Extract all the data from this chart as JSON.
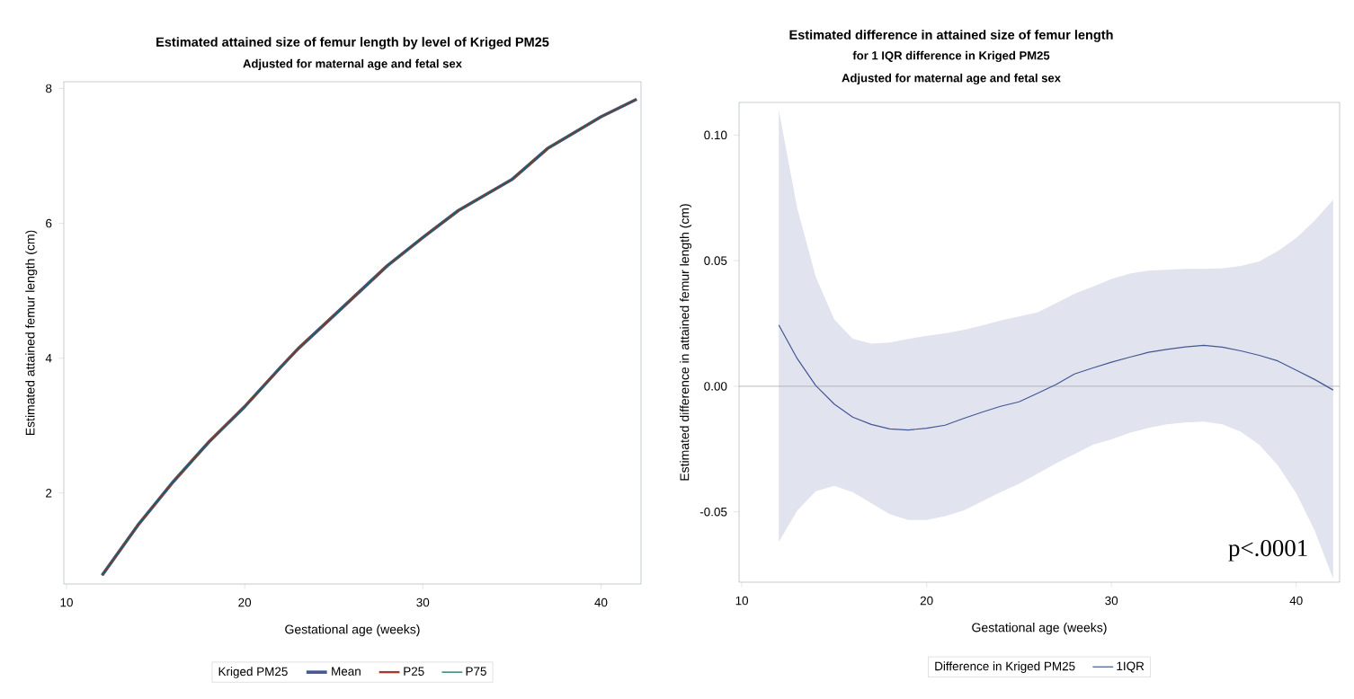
{
  "chart_data": [
    {
      "type": "line",
      "title": "Estimated attained size of femur length by level of Kriged PM25",
      "subtitle": "Adjusted for maternal age and fetal sex",
      "xlabel": "Gestational age (weeks)",
      "ylabel": "Estimated attained femur length (cm)",
      "legend_title": "Kriged PM25",
      "legend": "bottom",
      "x": [
        12,
        14,
        16,
        18,
        20,
        22,
        23,
        25,
        28,
        30,
        32,
        35,
        37,
        40,
        42
      ],
      "xlim": [
        9.85,
        42.25
      ],
      "xticks": [
        10,
        20,
        30,
        40
      ],
      "ylim": [
        0.65,
        8.1
      ],
      "yticks": [
        2,
        4,
        6,
        8
      ],
      "series": [
        {
          "name": "Mean",
          "color": "#445694",
          "values": [
            0.78,
            1.52,
            2.17,
            2.76,
            3.28,
            3.86,
            4.14,
            4.63,
            5.37,
            5.79,
            6.19,
            6.65,
            7.11,
            7.58,
            7.84
          ]
        },
        {
          "name": "P25",
          "color": "#a23a2e",
          "values": [
            0.78,
            1.52,
            2.17,
            2.76,
            3.28,
            3.86,
            4.14,
            4.63,
            5.37,
            5.79,
            6.19,
            6.65,
            7.11,
            7.58,
            7.84
          ]
        },
        {
          "name": "P75",
          "color": "#01665e",
          "values": [
            0.78,
            1.52,
            2.17,
            2.76,
            3.28,
            3.86,
            4.14,
            4.63,
            5.37,
            5.79,
            6.19,
            6.65,
            7.11,
            7.58,
            7.84
          ]
        }
      ]
    },
    {
      "type": "line",
      "title": "Estimated difference in attained size of femur length",
      "subtitle": "for 1 IQR difference in Kriged PM25",
      "xlabel": "Gestational age (weeks)",
      "ylabel": "Estimated difference in attained femur length (cm)",
      "legend_title": "Difference in Kriged PM25",
      "legend": "bottom",
      "annotations": [
        "Adjusted for maternal age and fetal sex",
        "p<.0001"
      ],
      "x": [
        12,
        13,
        14,
        15,
        16,
        17,
        18,
        19,
        20,
        21,
        22,
        23,
        24,
        25,
        26,
        27,
        28,
        29,
        30,
        31,
        32,
        33,
        34,
        35,
        36,
        37,
        38,
        39,
        40,
        41,
        42
      ],
      "xlim": [
        9.85,
        42.35
      ],
      "xticks": [
        10,
        20,
        30,
        40
      ],
      "ylim": [
        -0.078,
        0.113
      ],
      "yticks": [
        {
          "value": -0.05,
          "label": "-0.05"
        },
        {
          "value": 0,
          "label": "0.00"
        },
        {
          "value": 0.05,
          "label": "0.05"
        },
        {
          "value": 0.1,
          "label": "0.10"
        }
      ],
      "ref_lines": [
        {
          "axis": "y",
          "value": 0,
          "color": "#a8a8a8"
        }
      ],
      "series": [
        {
          "name": "1IQR",
          "color": "#445694",
          "values": [
            0.0244,
            0.011,
            0.0003,
            -0.0071,
            -0.0123,
            -0.0152,
            -0.017,
            -0.0174,
            -0.0167,
            -0.0155,
            -0.0128,
            -0.0103,
            -0.008,
            -0.0062,
            -0.0028,
            0.0007,
            0.0049,
            0.0073,
            0.0096,
            0.0116,
            0.0135,
            0.0147,
            0.0157,
            0.0163,
            0.0156,
            0.0141,
            0.0123,
            0.0101,
            0.0064,
            0.0027,
            -0.0015
          ],
          "upper": [
            0.11,
            0.0709,
            0.0436,
            0.0266,
            0.0189,
            0.017,
            0.0174,
            0.0188,
            0.0201,
            0.0211,
            0.0224,
            0.0242,
            0.0262,
            0.0278,
            0.0294,
            0.0331,
            0.0368,
            0.0397,
            0.0427,
            0.0449,
            0.046,
            0.0464,
            0.0467,
            0.0467,
            0.0469,
            0.0479,
            0.0497,
            0.0538,
            0.059,
            0.066,
            0.0743
          ],
          "lower": [
            -0.062,
            -0.0495,
            -0.0418,
            -0.0396,
            -0.0421,
            -0.0465,
            -0.0509,
            -0.0532,
            -0.0532,
            -0.0517,
            -0.0495,
            -0.0458,
            -0.0421,
            -0.0388,
            -0.0348,
            -0.0307,
            -0.027,
            -0.0233,
            -0.0211,
            -0.0185,
            -0.0166,
            -0.0151,
            -0.0144,
            -0.0141,
            -0.0151,
            -0.0181,
            -0.0233,
            -0.0314,
            -0.0426,
            -0.0574,
            -0.0767
          ]
        }
      ]
    }
  ]
}
